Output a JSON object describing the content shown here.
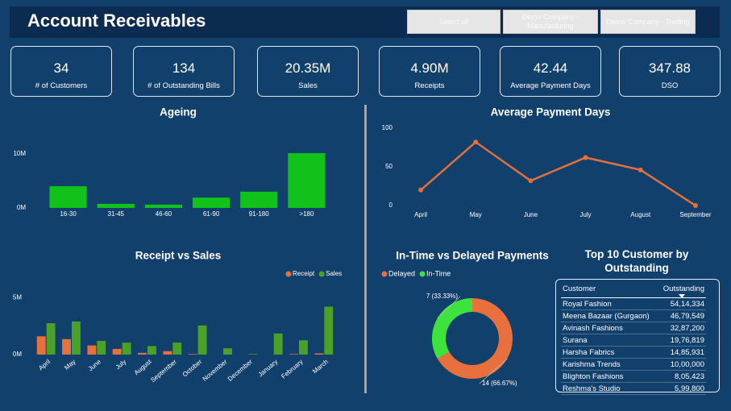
{
  "header": {
    "title": "Account Receivables"
  },
  "buttons": [
    "Select all",
    "Demo Company - Manufacturing",
    "Demo Company - Trading"
  ],
  "kpis": [
    {
      "value": "34",
      "label": "# of Customers"
    },
    {
      "value": "134",
      "label": "# of Outstanding Bills"
    },
    {
      "value": "20.35M",
      "label": "Sales"
    },
    {
      "value": "4.90M",
      "label": "Receipts"
    },
    {
      "value": "42.44",
      "label": "Average Payment Days"
    },
    {
      "value": "347.88",
      "label": "DSO"
    }
  ],
  "chart_data": [
    {
      "type": "bar",
      "title": "Ageing",
      "categories": [
        "16-30",
        "31-45",
        "46-60",
        "61-90",
        "91-180",
        ">180"
      ],
      "values": [
        4.0,
        0.75,
        0.6,
        1.9,
        3.0,
        10.1
      ],
      "color": "#10c21a",
      "ylim": [
        0,
        11
      ],
      "yticks": [
        {
          "value": 0,
          "label": "0M"
        },
        {
          "value": 10,
          "label": "10M"
        }
      ]
    },
    {
      "type": "line",
      "title": "Average Payment Days",
      "categories": [
        "April",
        "May",
        "June",
        "July",
        "August",
        "September"
      ],
      "values": [
        20,
        82,
        32,
        62,
        46,
        0
      ],
      "color": "#e0703c",
      "ylim": [
        0,
        100
      ],
      "yticks": [
        0,
        50,
        100
      ]
    },
    {
      "type": "grouped_bar",
      "title": "Receipt vs Sales",
      "categories": [
        "April",
        "May",
        "June",
        "July",
        "August",
        "September",
        "October",
        "November",
        "December",
        "January",
        "February",
        "March"
      ],
      "series": [
        {
          "name": "Receipt",
          "color": "#e8703c",
          "values": [
            1.6,
            1.35,
            0.8,
            0.5,
            0.15,
            0.3,
            0.05,
            0,
            0,
            0,
            0.05,
            0.1
          ]
        },
        {
          "name": "Sales",
          "color": "#4aa127",
          "values": [
            2.75,
            2.9,
            1.2,
            1.05,
            0.75,
            1.05,
            2.55,
            0.55,
            0.05,
            1.85,
            1.25,
            4.2
          ]
        }
      ],
      "ylim": [
        0,
        6
      ],
      "yticks": [
        {
          "value": 0,
          "label": "0M"
        },
        {
          "value": 5,
          "label": "5M"
        }
      ],
      "legend": "top-right"
    },
    {
      "type": "donut",
      "title": "In-Time vs Delayed Payments",
      "categories": [
        "Delayed",
        "In-Time"
      ],
      "values": [
        14,
        7
      ],
      "value_labels": [
        "14 (66.67%)",
        "7 (33.33%)"
      ],
      "colors": [
        "#e8703c",
        "#3de23d"
      ],
      "legend": "top-left"
    }
  ],
  "table": {
    "title": "Top 10 Customer by Outstanding",
    "columns": [
      "Customer",
      "Outstanding"
    ],
    "rows": [
      [
        "Royal Fashion",
        "54,14,334"
      ],
      [
        "Meena Bazaar (Gurgaon)",
        "46,79,549"
      ],
      [
        "Avinash Fashions",
        "32,87,200"
      ],
      [
        "Surana",
        "19,76,819"
      ],
      [
        "Harsha Fabrics",
        "14,85,931"
      ],
      [
        "Karishma Trends",
        "10,00,000"
      ],
      [
        "Blighton Fashions",
        "8,05,423"
      ],
      [
        "Reshma's Studio",
        "5,99,800"
      ]
    ]
  }
}
